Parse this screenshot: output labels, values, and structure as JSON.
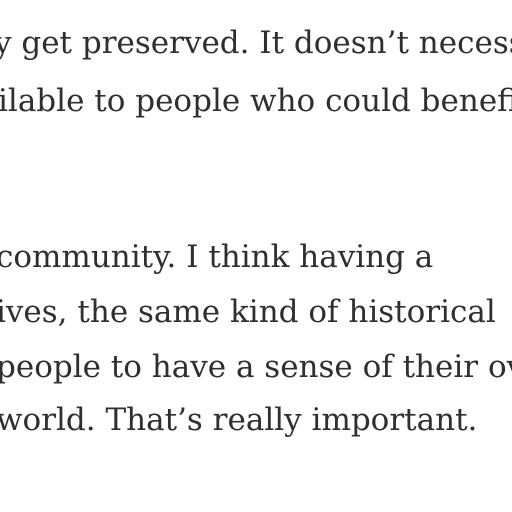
{
  "article": {
    "paragraph1": {
      "line1": "y get preserved. It doesn’t necess",
      "line2": "ilable to people who could benefi"
    },
    "paragraph2": {
      "line1": "community. I think having a",
      "line2": "ives, the same kind of historical",
      "line3": "people to have a sense of their ov",
      "line4": "world. That’s really important."
    }
  }
}
